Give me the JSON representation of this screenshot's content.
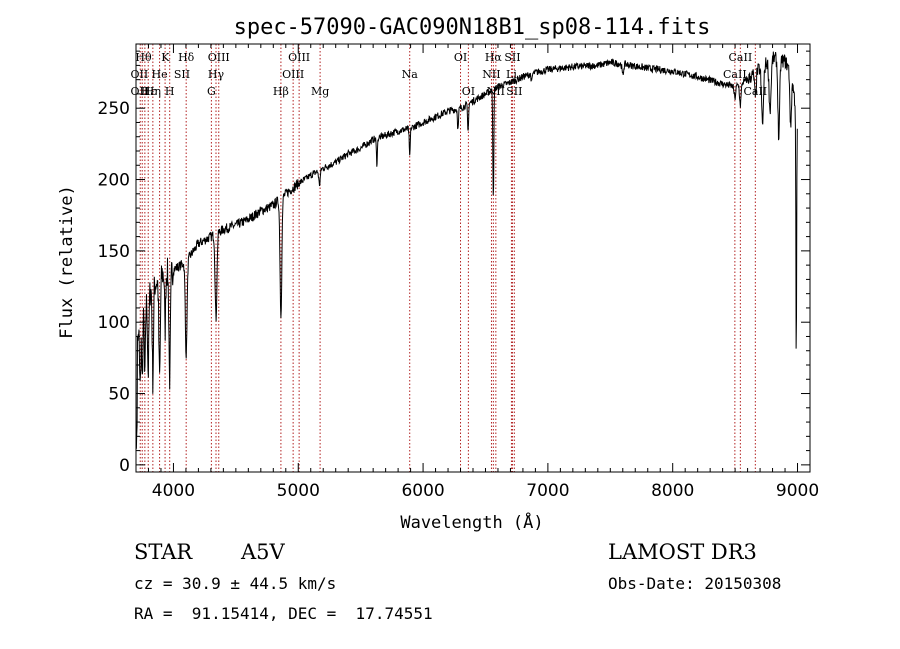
{
  "chart_data": {
    "type": "line",
    "title": "spec-57090-GAC090N18B1_sp08-114.fits",
    "xlabel": "Wavelength (Å)",
    "ylabel": "Flux (relative)",
    "xlim": [
      3700,
      9100
    ],
    "ylim": [
      -5,
      295
    ],
    "xticks": [
      4000,
      5000,
      6000,
      7000,
      8000,
      9000
    ],
    "yticks": [
      0,
      50,
      100,
      150,
      200,
      250
    ],
    "continuum": [
      [
        3700,
        80
      ],
      [
        3800,
        120
      ],
      [
        3900,
        133
      ],
      [
        4000,
        137
      ],
      [
        4100,
        142
      ],
      [
        4200,
        155
      ],
      [
        4300,
        160
      ],
      [
        4400,
        165
      ],
      [
        4500,
        168
      ],
      [
        4600,
        172
      ],
      [
        4700,
        178
      ],
      [
        4800,
        182
      ],
      [
        4900,
        190
      ],
      [
        5000,
        197
      ],
      [
        5100,
        203
      ],
      [
        5200,
        208
      ],
      [
        5300,
        212
      ],
      [
        5400,
        218
      ],
      [
        5500,
        222
      ],
      [
        5600,
        228
      ],
      [
        5700,
        231
      ],
      [
        5800,
        234
      ],
      [
        5900,
        236
      ],
      [
        6000,
        240
      ],
      [
        6100,
        244
      ],
      [
        6200,
        248
      ],
      [
        6300,
        250
      ],
      [
        6400,
        255
      ],
      [
        6500,
        260
      ],
      [
        6600,
        265
      ],
      [
        6700,
        268
      ],
      [
        6800,
        272
      ],
      [
        6900,
        275
      ],
      [
        7000,
        277
      ],
      [
        7200,
        279
      ],
      [
        7400,
        280
      ],
      [
        7500,
        282
      ],
      [
        7600,
        281
      ],
      [
        7800,
        278
      ],
      [
        8000,
        276
      ],
      [
        8200,
        272
      ],
      [
        8400,
        267
      ],
      [
        8500,
        265
      ],
      [
        8600,
        270
      ],
      [
        8700,
        278
      ],
      [
        8800,
        285
      ],
      [
        8900,
        283
      ],
      [
        8950,
        275
      ],
      [
        9000,
        240
      ]
    ],
    "absorption": [
      {
        "center": 3734,
        "depth": 40,
        "width": 4
      },
      {
        "center": 3750,
        "depth": 45,
        "width": 4
      },
      {
        "center": 3771,
        "depth": 50,
        "width": 4
      },
      {
        "center": 3798,
        "depth": 55,
        "width": 5
      },
      {
        "center": 3835,
        "depth": 65,
        "width": 5
      },
      {
        "center": 3889,
        "depth": 70,
        "width": 6
      },
      {
        "center": 3933,
        "depth": 40,
        "width": 4
      },
      {
        "center": 3970,
        "depth": 75,
        "width": 6
      },
      {
        "center": 4102,
        "depth": 65,
        "width": 7
      },
      {
        "center": 4341,
        "depth": 60,
        "width": 7
      },
      {
        "center": 4861,
        "depth": 82,
        "width": 7
      },
      {
        "center": 5170,
        "depth": 10,
        "width": 6
      },
      {
        "center": 5630,
        "depth": 18,
        "width": 4
      },
      {
        "center": 5893,
        "depth": 20,
        "width": 4
      },
      {
        "center": 6280,
        "depth": 15,
        "width": 4
      },
      {
        "center": 6360,
        "depth": 20,
        "width": 4
      },
      {
        "center": 6563,
        "depth": 75,
        "width": 4
      },
      {
        "center": 6870,
        "depth": 6,
        "width": 4
      },
      {
        "center": 7600,
        "depth": 8,
        "width": 6
      },
      {
        "center": 8498,
        "depth": 8,
        "width": 6
      },
      {
        "center": 8542,
        "depth": 15,
        "width": 6
      },
      {
        "center": 8662,
        "depth": 18,
        "width": 6
      },
      {
        "center": 8720,
        "depth": 40,
        "width": 8
      },
      {
        "center": 8780,
        "depth": 35,
        "width": 8
      },
      {
        "center": 8850,
        "depth": 55,
        "width": 7
      },
      {
        "center": 8945,
        "depth": 40,
        "width": 6
      },
      {
        "center": 8990,
        "depth": 180,
        "width": 3
      }
    ],
    "lines": [
      3734,
      3750,
      3771,
      3798,
      3835,
      3889,
      3933,
      3970,
      4102,
      4304,
      4341,
      4363,
      4861,
      4959,
      5007,
      5175,
      5893,
      6300,
      6363,
      6548,
      6563,
      6583,
      6708,
      6716,
      6731,
      8498,
      8542,
      8662
    ],
    "line_labels": [
      {
        "text": "Hθ",
        "x": 3760,
        "row": 1
      },
      {
        "text": "K",
        "x": 3935,
        "row": 1
      },
      {
        "text": "Hδ",
        "x": 4102,
        "row": 1
      },
      {
        "text": "OIII",
        "x": 4363,
        "row": 1
      },
      {
        "text": "OIII",
        "x": 5007,
        "row": 1
      },
      {
        "text": "OI",
        "x": 6300,
        "row": 1
      },
      {
        "text": "Hα",
        "x": 6563,
        "row": 1
      },
      {
        "text": "SII",
        "x": 6716,
        "row": 1
      },
      {
        "text": "CaII",
        "x": 8542,
        "row": 1
      },
      {
        "text": "OII",
        "x": 3727,
        "row": 2
      },
      {
        "text": "He",
        "x": 3889,
        "row": 2
      },
      {
        "text": "SII",
        "x": 4068,
        "row": 2
      },
      {
        "text": "Hγ",
        "x": 4341,
        "row": 2
      },
      {
        "text": "OIII",
        "x": 4959,
        "row": 2
      },
      {
        "text": "Na",
        "x": 5893,
        "row": 2
      },
      {
        "text": "NII",
        "x": 6548,
        "row": 2
      },
      {
        "text": "Li",
        "x": 6708,
        "row": 2
      },
      {
        "text": "CaII",
        "x": 8498,
        "row": 2
      },
      {
        "text": "OII",
        "x": 3727,
        "row": 3
      },
      {
        "text": "Hε",
        "x": 3800,
        "row": 3
      },
      {
        "text": "Hη",
        "x": 3835,
        "row": 3
      },
      {
        "text": "H",
        "x": 3970,
        "row": 3
      },
      {
        "text": "G",
        "x": 4304,
        "row": 3
      },
      {
        "text": "Hβ",
        "x": 4861,
        "row": 3
      },
      {
        "text": "Mg",
        "x": 5175,
        "row": 3
      },
      {
        "text": "OI",
        "x": 6363,
        "row": 3
      },
      {
        "text": "NII",
        "x": 6583,
        "row": 3
      },
      {
        "text": "SII",
        "x": 6731,
        "row": 3
      },
      {
        "text": "CaII",
        "x": 8662,
        "row": 3
      }
    ]
  },
  "info": {
    "class": "STAR",
    "subclass": "A5V",
    "survey": "LAMOST DR3",
    "cz": "cz = 30.9 ± 44.5 km/s",
    "obs_date": "Obs-Date: 20150308",
    "radec": "RA =  91.15414, DEC =  17.74551"
  },
  "colors": {
    "line_marker": "#b22222",
    "spectrum": "#000000"
  }
}
